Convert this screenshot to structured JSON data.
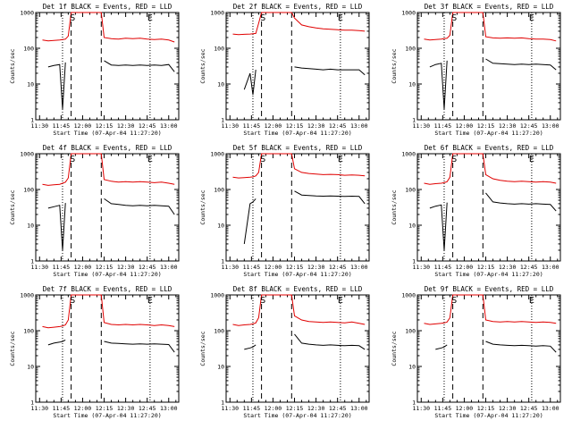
{
  "panel_titles": [
    "Det 1f BLACK = Events, RED = LLD",
    "Det 2f BLACK = Events, RED = LLD",
    "Det 3f BLACK = Events, RED = LLD",
    "Det 4f BLACK = Events, RED = LLD",
    "Det 5f BLACK = Events, RED = LLD",
    "Det 6f BLACK = Events, RED = LLD",
    "Det 7f BLACK = Events, RED = LLD",
    "Det 8f BLACK = Events, RED = LLD",
    "Det 9f BLACK = Events, RED = LLD"
  ],
  "ylabel": "Counts/sec",
  "xlabel": "Start Time (07-Apr-04 11:27:20)",
  "x_tick_labels": [
    "11:30",
    "11:45",
    "12:00",
    "12:15",
    "12:30",
    "12:45",
    "13:00"
  ],
  "y_tick_labels": [
    "1",
    "10",
    "100",
    "1000"
  ],
  "markers": {
    "start": "S",
    "end": "E"
  },
  "colors": {
    "events": "#000000",
    "lld": "#e00000",
    "axes": "#000000"
  },
  "chart_data": {
    "type": "line",
    "layout": "3x3 grid of detector panels",
    "yscale": "log",
    "ylim": [
      1,
      1000
    ],
    "xlim": [
      "11:27:20",
      "13:07:00"
    ],
    "x_ticks": [
      "11:30",
      "11:45",
      "12:00",
      "12:15",
      "12:30",
      "12:45",
      "13:00"
    ],
    "dashed_vlines": [
      "11:52",
      "12:13"
    ],
    "dotted_vlines": [
      "11:46",
      "12:47"
    ],
    "marker_times": {
      "S": "11:53",
      "E": "12:47"
    },
    "x": [
      "11:32",
      "11:36",
      "11:40",
      "11:44",
      "11:46",
      "11:48",
      "11:50",
      "11:52",
      "12:13",
      "12:15",
      "12:20",
      "12:25",
      "12:30",
      "12:35",
      "12:40",
      "12:45",
      "12:50",
      "12:55",
      "13:00",
      "13:04"
    ],
    "panels": [
      {
        "detector": "1f",
        "series": [
          {
            "name": "BLACK = Events",
            "values": [
              null,
              30,
              33,
              35,
              2,
              40,
              null,
              null,
              null,
              45,
              34,
              33,
              34,
              33,
              34,
              33,
              34,
              33,
              35,
              22
            ]
          },
          {
            "name": "RED = LLD",
            "values": [
              170,
              160,
              165,
              170,
              175,
              180,
              220,
              1000,
              1000,
              200,
              185,
              180,
              190,
              185,
              190,
              180,
              175,
              180,
              170,
              150
            ]
          }
        ]
      },
      {
        "detector": "2f",
        "series": [
          {
            "name": "BLACK = Events",
            "values": [
              null,
              null,
              7,
              20,
              5,
              25,
              null,
              null,
              null,
              30,
              28,
              27,
              26,
              25,
              26,
              25,
              25,
              25,
              25,
              18
            ]
          },
          {
            "name": "RED = LLD",
            "values": [
              250,
              240,
              245,
              250,
              255,
              260,
              500,
              1000,
              1000,
              700,
              450,
              400,
              370,
              350,
              340,
              330,
              320,
              320,
              310,
              300
            ]
          }
        ]
      },
      {
        "detector": "3f",
        "series": [
          {
            "name": "BLACK = Events",
            "values": [
              null,
              30,
              35,
              38,
              2,
              45,
              null,
              null,
              null,
              50,
              38,
              37,
              36,
              35,
              36,
              35,
              36,
              35,
              34,
              25
            ]
          },
          {
            "name": "RED = LLD",
            "values": [
              180,
              170,
              175,
              180,
              185,
              190,
              230,
              1000,
              1000,
              210,
              195,
              190,
              195,
              190,
              195,
              185,
              180,
              180,
              175,
              160
            ]
          }
        ]
      },
      {
        "detector": "4f",
        "series": [
          {
            "name": "BLACK = Events",
            "values": [
              null,
              30,
              33,
              36,
              2,
              42,
              null,
              null,
              null,
              55,
              40,
              38,
              36,
              35,
              36,
              35,
              36,
              35,
              34,
              20
            ]
          },
          {
            "name": "RED = LLD",
            "values": [
              140,
              130,
              135,
              140,
              150,
              160,
              210,
              1000,
              1000,
              190,
              170,
              160,
              165,
              160,
              165,
              160,
              155,
              160,
              150,
              140
            ]
          }
        ]
      },
      {
        "detector": "5f",
        "series": [
          {
            "name": "BLACK = Events",
            "values": [
              null,
              null,
              3,
              40,
              45,
              55,
              null,
              null,
              null,
              90,
              70,
              68,
              66,
              65,
              66,
              65,
              64,
              65,
              64,
              40
            ]
          },
          {
            "name": "RED = LLD",
            "values": [
              220,
              210,
              215,
              220,
              225,
              240,
              300,
              1000,
              1000,
              380,
              300,
              280,
              270,
              260,
              265,
              260,
              250,
              255,
              250,
              240
            ]
          }
        ]
      },
      {
        "detector": "6f",
        "series": [
          {
            "name": "BLACK = Events",
            "values": [
              null,
              30,
              34,
              37,
              2,
              43,
              null,
              null,
              null,
              80,
              45,
              42,
              40,
              39,
              40,
              39,
              40,
              39,
              38,
              25
            ]
          },
          {
            "name": "RED = LLD",
            "values": [
              150,
              140,
              145,
              150,
              155,
              165,
              220,
              1000,
              1000,
              260,
              200,
              180,
              170,
              165,
              170,
              165,
              160,
              165,
              160,
              150
            ]
          }
        ]
      },
      {
        "detector": "7f",
        "series": [
          {
            "name": "BLACK = Events",
            "values": [
              null,
              40,
              45,
              48,
              50,
              55,
              null,
              null,
              null,
              50,
              45,
              44,
              43,
              42,
              43,
              42,
              43,
              42,
              41,
              25
            ]
          },
          {
            "name": "RED = LLD",
            "values": [
              130,
              120,
              125,
              130,
              135,
              145,
              200,
              1000,
              1000,
              170,
              150,
              145,
              150,
              145,
              150,
              145,
              140,
              145,
              140,
              130
            ]
          }
        ]
      },
      {
        "detector": "8f",
        "series": [
          {
            "name": "BLACK = Events",
            "values": [
              null,
              null,
              30,
              33,
              35,
              40,
              null,
              null,
              null,
              80,
              45,
              42,
              40,
              39,
              40,
              39,
              38,
              39,
              38,
              30
            ]
          },
          {
            "name": "RED = LLD",
            "values": [
              150,
              140,
              145,
              150,
              155,
              165,
              230,
              1000,
              1000,
              260,
              200,
              180,
              175,
              170,
              175,
              170,
              165,
              175,
              160,
              150
            ]
          }
        ]
      },
      {
        "detector": "9f",
        "series": [
          {
            "name": "BLACK = Events",
            "values": [
              null,
              null,
              30,
              33,
              35,
              40,
              null,
              null,
              null,
              50,
              42,
              40,
              39,
              38,
              39,
              38,
              37,
              38,
              37,
              25
            ]
          },
          {
            "name": "RED = LLD",
            "values": [
              160,
              150,
              155,
              160,
              165,
              175,
              230,
              1000,
              1000,
              200,
              180,
              175,
              180,
              175,
              180,
              175,
              170,
              175,
              170,
              160
            ]
          }
        ]
      }
    ]
  }
}
